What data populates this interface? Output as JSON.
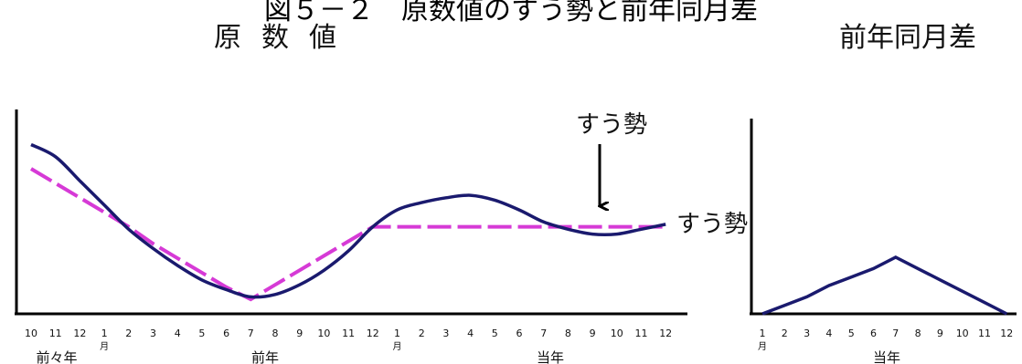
{
  "figure": {
    "title": "図５－２　原数値のすう勢と前年同月差",
    "left_title": "原数値",
    "right_title": "前年同月差"
  },
  "left_panel": {
    "month_ticks": [
      "10",
      "11",
      "12",
      "1",
      "2",
      "3",
      "4",
      "5",
      "6",
      "7",
      "8",
      "9",
      "10",
      "11",
      "12",
      "1",
      "2",
      "3",
      "4",
      "5",
      "6",
      "7",
      "8",
      "9",
      "10",
      "11",
      "12"
    ],
    "month_kanji": "月",
    "year_labels": [
      "前々年",
      "前年",
      "当年"
    ],
    "annotation_top": "すう勢",
    "annotation_right": "すう勢",
    "colors": {
      "original": "#1a1a6e",
      "trend": "#d63ad6",
      "axis": "#000000"
    }
  },
  "right_panel": {
    "month_ticks": [
      "1",
      "2",
      "3",
      "4",
      "5",
      "6",
      "7",
      "8",
      "9",
      "10",
      "11",
      "12"
    ],
    "month_kanji": "月",
    "year_label": "当年",
    "colors": {
      "line": "#1a1a6e",
      "axis": "#000000"
    }
  },
  "chart_data": [
    {
      "type": "line",
      "categories": [
        "10",
        "11",
        "12",
        "1",
        "2",
        "3",
        "4",
        "5",
        "6",
        "7",
        "8",
        "9",
        "10",
        "11",
        "12",
        "1",
        "2",
        "3",
        "4",
        "5",
        "6",
        "7",
        "8",
        "9",
        "10",
        "11",
        "12"
      ],
      "series": [
        {
          "values": [
            7.0,
            6.5,
            5.5,
            4.5,
            3.5,
            2.7,
            2.0,
            1.4,
            1.0,
            0.7,
            0.8,
            1.2,
            1.8,
            2.6,
            3.6,
            4.3,
            4.6,
            4.8,
            4.9,
            4.7,
            4.3,
            3.8,
            3.5,
            3.3,
            3.3,
            3.5,
            3.7
          ]
        },
        {
          "values": [
            6.0,
            5.4,
            4.8,
            4.2,
            3.6,
            2.9,
            2.3,
            1.7,
            1.1,
            0.6,
            1.2,
            1.8,
            2.4,
            3.0,
            3.6,
            3.6,
            3.6,
            3.6,
            3.6,
            3.6,
            3.6,
            3.6,
            3.6,
            3.6,
            3.6,
            3.6,
            3.6
          ]
        }
      ]
    },
    {
      "type": "line",
      "categories": [
        "1",
        "2",
        "3",
        "4",
        "5",
        "6",
        "7",
        "8",
        "9",
        "10",
        "11",
        "12"
      ],
      "series": [
        {
          "values": [
            0,
            0.3,
            0.6,
            1.0,
            1.3,
            1.6,
            2.0,
            1.6,
            1.2,
            0.8,
            0.4,
            0
          ]
        }
      ]
    }
  ]
}
